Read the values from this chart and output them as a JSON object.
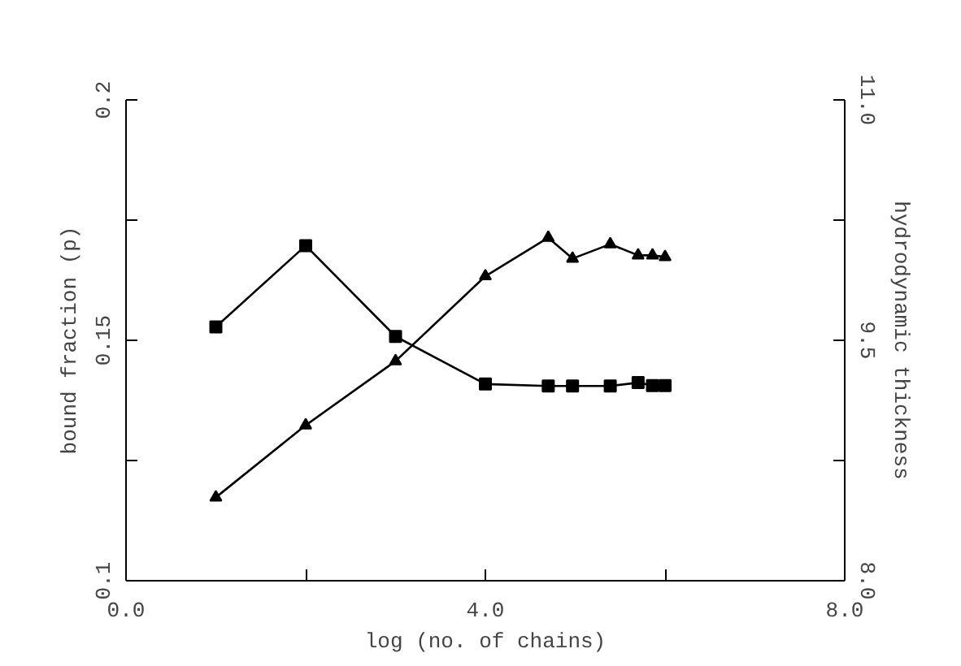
{
  "chart_data": {
    "type": "line",
    "xlabel": "log (no. of chains)",
    "ylabel": "bound fraction (p)",
    "y2label": "hydrodynamic thickness",
    "xlim": [
      0,
      8
    ],
    "xticks": [
      {
        "value": 0,
        "label": "0.0"
      },
      {
        "value": 2,
        "label": null
      },
      {
        "value": 4,
        "label": "4.0"
      },
      {
        "value": 6,
        "label": null
      },
      {
        "value": 8,
        "label": "8.0"
      }
    ],
    "ylim": [
      0.1,
      0.2
    ],
    "yticks": [
      {
        "value": 0.1,
        "label": "0.1"
      },
      {
        "value": 0.125,
        "label": null
      },
      0.15,
      {
        "value": 0.175,
        "label": null
      },
      {
        "value": 0.2,
        "label": "0.2"
      }
    ],
    "y2lim": [
      8,
      11
    ],
    "y2ticks": [
      {
        "value": 8,
        "label": "8.0"
      },
      {
        "value": 8.75,
        "label": null
      },
      9.5,
      {
        "value": 10.25,
        "label": null
      },
      {
        "value": 11,
        "label": "11.0"
      }
    ],
    "grid": false,
    "line_style": "solid",
    "series": [
      {
        "color": "#000000",
        "marker": "square",
        "x": [
          1.0,
          2.0,
          3.0,
          4.0,
          4.7,
          4.97,
          5.39,
          5.7,
          5.86,
          6.0
        ],
        "values": [
          0.1528,
          0.1697,
          0.1508,
          0.1409,
          0.1405,
          0.1405,
          0.1405,
          0.1412,
          0.1406,
          0.1406
        ]
      },
      {
        "color": "#000000",
        "marker": "triangle",
        "axis": "y2",
        "x": [
          1.0,
          2.0,
          3.0,
          4.0,
          4.7,
          4.97,
          5.39,
          5.7,
          5.86,
          6.0
        ],
        "values": [
          8.52,
          8.97,
          9.37,
          9.9,
          10.14,
          10.01,
          10.1,
          10.03,
          10.03,
          10.02
        ]
      }
    ]
  }
}
